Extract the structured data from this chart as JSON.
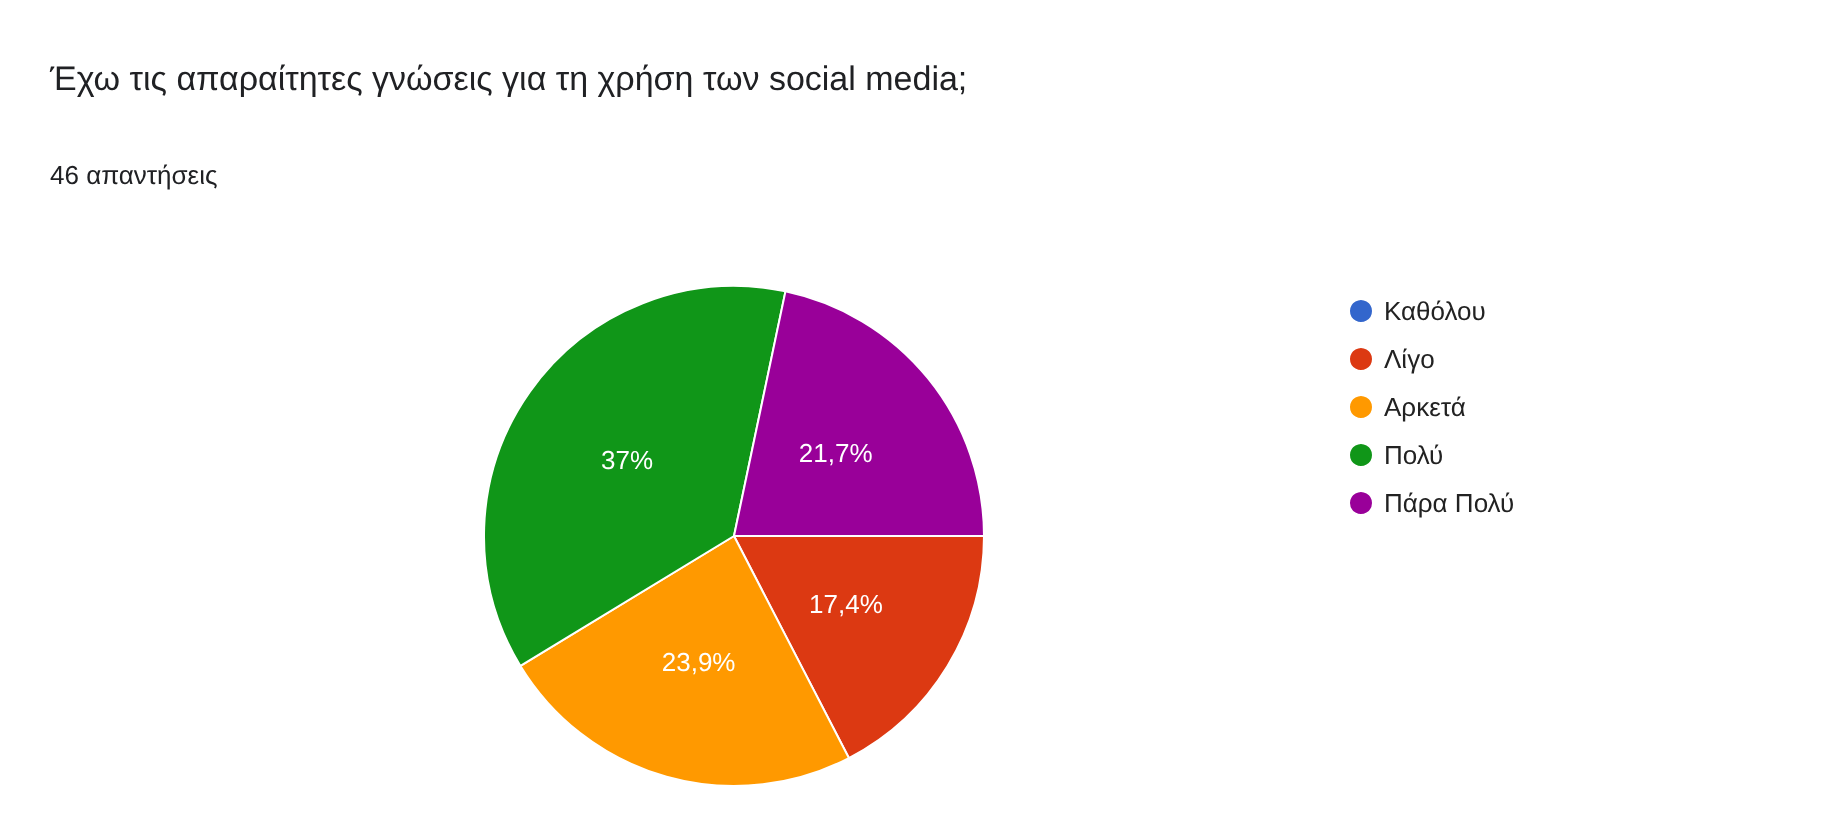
{
  "chart_data": {
    "type": "pie",
    "title": "Έχω τις απαραίτητες γνώσεις για τη χρήση των social media;",
    "subtitle": "46 απαντήσεις",
    "categories": [
      "Καθόλου",
      "Λίγο",
      "Αρκετά",
      "Πολύ",
      "Πάρα Πολύ"
    ],
    "values": [
      0,
      17.4,
      23.9,
      37,
      21.7
    ],
    "colors": [
      "#3366cc",
      "#dc3912",
      "#ff9900",
      "#109618",
      "#990099"
    ],
    "value_labels": [
      null,
      "17,4%",
      "23,9%",
      "37%",
      "21,7%"
    ],
    "legend": "right"
  }
}
